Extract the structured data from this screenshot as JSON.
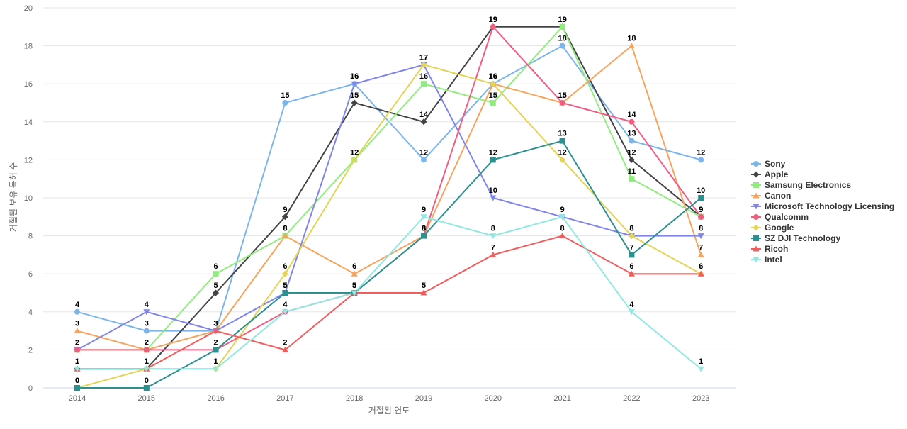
{
  "chart_data": {
    "type": "line",
    "xlabel": "거절된 연도",
    "ylabel": "거절된 보유 특허 수",
    "ylim": [
      0,
      20
    ],
    "y_ticks": [
      0,
      2,
      4,
      6,
      8,
      10,
      12,
      14,
      16,
      18,
      20
    ],
    "categories": [
      "2014",
      "2015",
      "2016",
      "2017",
      "2018",
      "2019",
      "2020",
      "2021",
      "2022",
      "2023"
    ],
    "grid": true,
    "legend_position": "right",
    "series": [
      {
        "name": "Sony",
        "color": "#7cb5ec",
        "marker": "circle",
        "values": [
          4,
          3,
          3,
          15,
          16,
          12,
          16,
          18,
          13,
          12
        ]
      },
      {
        "name": "Apple",
        "color": "#434348",
        "marker": "diamond",
        "values": [
          1,
          1,
          5,
          9,
          15,
          14,
          19,
          19,
          12,
          9
        ]
      },
      {
        "name": "Samsung Electronics",
        "color": "#90ed7d",
        "marker": "square",
        "values": [
          2,
          2,
          6,
          8,
          12,
          16,
          15,
          19,
          11,
          9
        ]
      },
      {
        "name": "Canon",
        "color": "#f7a35c",
        "marker": "triangle",
        "values": [
          3,
          2,
          3,
          8,
          6,
          8,
          16,
          15,
          18,
          7
        ]
      },
      {
        "name": "Microsoft Technology Licensing",
        "color": "#8085e9",
        "marker": "triangle-down",
        "values": [
          2,
          4,
          3,
          5,
          16,
          17,
          10,
          9,
          8,
          8
        ]
      },
      {
        "name": "Qualcomm",
        "color": "#f15c80",
        "marker": "circle",
        "values": [
          2,
          2,
          2,
          4,
          5,
          8,
          19,
          15,
          14,
          9
        ]
      },
      {
        "name": "Google",
        "color": "#e4d354",
        "marker": "diamond",
        "values": [
          0,
          1,
          1,
          6,
          12,
          17,
          16,
          12,
          8,
          6
        ]
      },
      {
        "name": "SZ DJI Technology",
        "color": "#2b908f",
        "marker": "square",
        "values": [
          0,
          0,
          2,
          5,
          5,
          8,
          12,
          13,
          7,
          10
        ]
      },
      {
        "name": "Ricoh",
        "color": "#f45b5b",
        "marker": "triangle",
        "values": [
          1,
          1,
          3,
          2,
          5,
          5,
          7,
          8,
          6,
          6
        ]
      },
      {
        "name": "Intel",
        "color": "#91e8e1",
        "marker": "triangle-down",
        "values": [
          1,
          1,
          1,
          4,
          5,
          9,
          8,
          9,
          4,
          1
        ]
      }
    ]
  }
}
